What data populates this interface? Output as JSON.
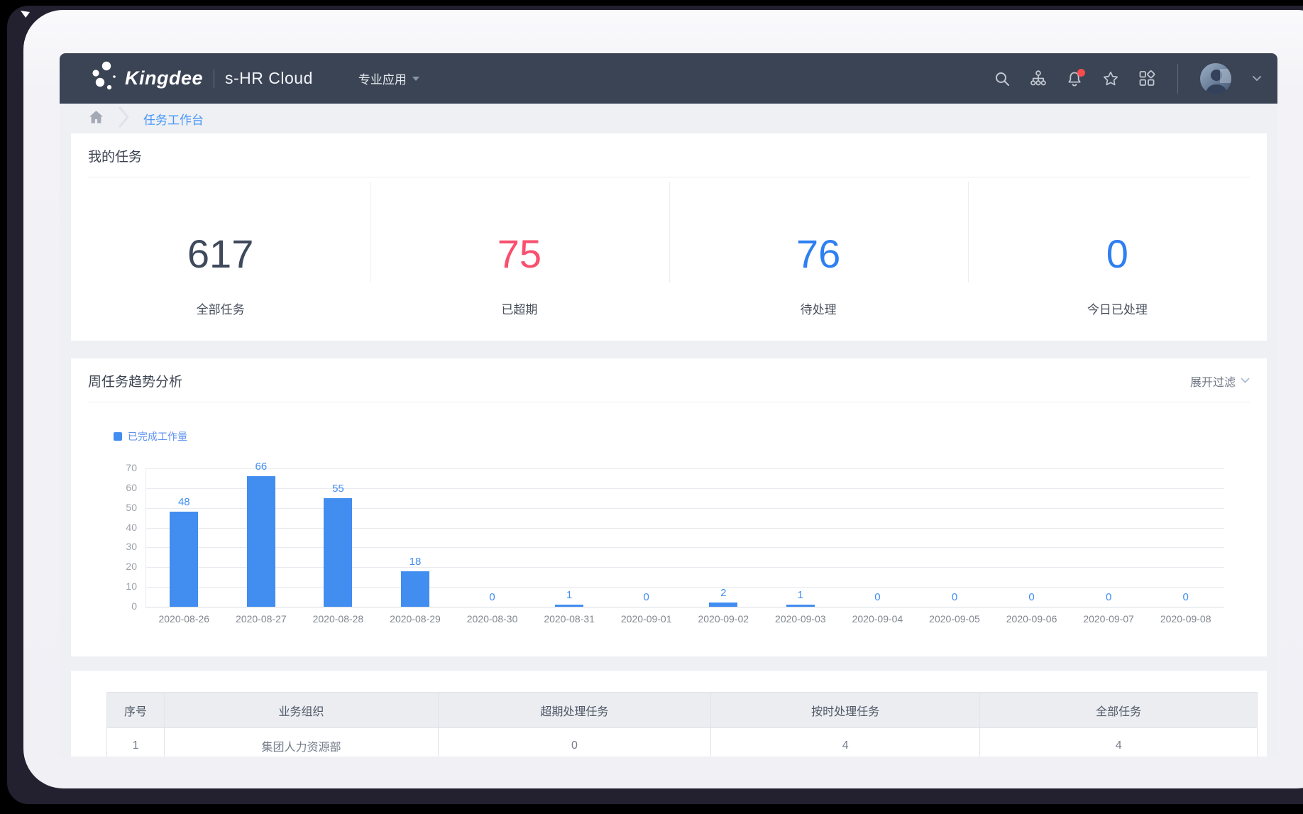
{
  "navbar": {
    "brand": "Kingdee",
    "product": "s-HR Cloud",
    "menu_label": "专业应用",
    "icons": [
      "search-icon",
      "org-chart-icon",
      "notifications-icon",
      "favorites-icon",
      "apps-icon",
      "avatar",
      "chevron-down-icon"
    ],
    "notification_badge_color": "#fa4b4b"
  },
  "breadcrumb": {
    "current": "任务工作台"
  },
  "my_tasks": {
    "title": "我的任务",
    "items": [
      {
        "value": "617",
        "label": "全部任务",
        "color": "#3e4a5c"
      },
      {
        "value": "75",
        "label": "已超期",
        "color": "#f8506e"
      },
      {
        "value": "76",
        "label": "待处理",
        "color": "#2e7ff2"
      },
      {
        "value": "0",
        "label": "今日已处理",
        "color": "#2e7ff2"
      }
    ]
  },
  "trend": {
    "title": "周任务趋势分析",
    "filter_label": "展开过滤",
    "legend_label": "已完成工作量"
  },
  "chart_data": {
    "type": "bar",
    "title": "周任务趋势分析",
    "legend": [
      "已完成工作量"
    ],
    "legend_position": "top-left",
    "categories": [
      "2020-08-26",
      "2020-08-27",
      "2020-08-28",
      "2020-08-29",
      "2020-08-30",
      "2020-08-31",
      "2020-09-01",
      "2020-09-02",
      "2020-09-03",
      "2020-09-04",
      "2020-09-05",
      "2020-09-06",
      "2020-09-07",
      "2020-09-08"
    ],
    "values": [
      48,
      66,
      55,
      18,
      0,
      1,
      0,
      2,
      1,
      0,
      0,
      0,
      0,
      0
    ],
    "xlabel": "",
    "ylabel": "",
    "ylim": [
      0,
      70
    ],
    "ytick_step": 10,
    "grid": true,
    "bar_color": "#418df0"
  },
  "table": {
    "headers": [
      "序号",
      "业务组织",
      "超期处理任务",
      "按时处理任务",
      "全部任务"
    ],
    "rows": [
      [
        "1",
        "集团人力资源部",
        "0",
        "4",
        "4"
      ]
    ]
  },
  "colors": {
    "navbar_bg": "#3b4455",
    "page_bg": "#eef0f4",
    "accent_blue": "#418df0",
    "danger_red": "#f8506e",
    "stat_dark": "#3e4a5c"
  }
}
